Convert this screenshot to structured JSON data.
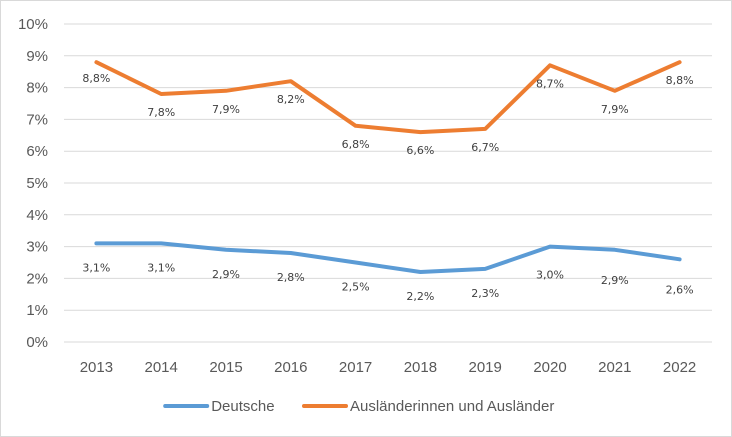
{
  "chart_data": {
    "type": "line",
    "title": "",
    "xlabel": "",
    "ylabel": "",
    "categories": [
      "2013",
      "2014",
      "2015",
      "2016",
      "2017",
      "2018",
      "2019",
      "2020",
      "2021",
      "2022"
    ],
    "ylim": [
      0,
      10
    ],
    "y_ticks": [
      "0%",
      "1%",
      "2%",
      "3%",
      "4%",
      "5%",
      "6%",
      "7%",
      "8%",
      "9%",
      "10%"
    ],
    "grid": true,
    "legend_position": "bottom",
    "series": [
      {
        "name": "Deutsche",
        "color": "#5b9bd5",
        "values": [
          3.1,
          3.1,
          2.9,
          2.8,
          2.5,
          2.2,
          2.3,
          3.0,
          2.9,
          2.6
        ],
        "labels": [
          "3,1%",
          "3,1%",
          "2,9%",
          "2,8%",
          "2,5%",
          "2,2%",
          "2,3%",
          "3,0%",
          "2,9%",
          "2,6%"
        ]
      },
      {
        "name": "Ausländerinnen und Ausländer",
        "color": "#ed7d31",
        "values": [
          8.8,
          7.8,
          7.9,
          8.2,
          6.8,
          6.6,
          6.7,
          8.7,
          7.9,
          8.8
        ],
        "labels": [
          "8,8%",
          "7,8%",
          "7,9%",
          "8,2%",
          "6,8%",
          "6,6%",
          "6,7%",
          "8,7%",
          "7,9%",
          "8,8%"
        ]
      }
    ]
  }
}
